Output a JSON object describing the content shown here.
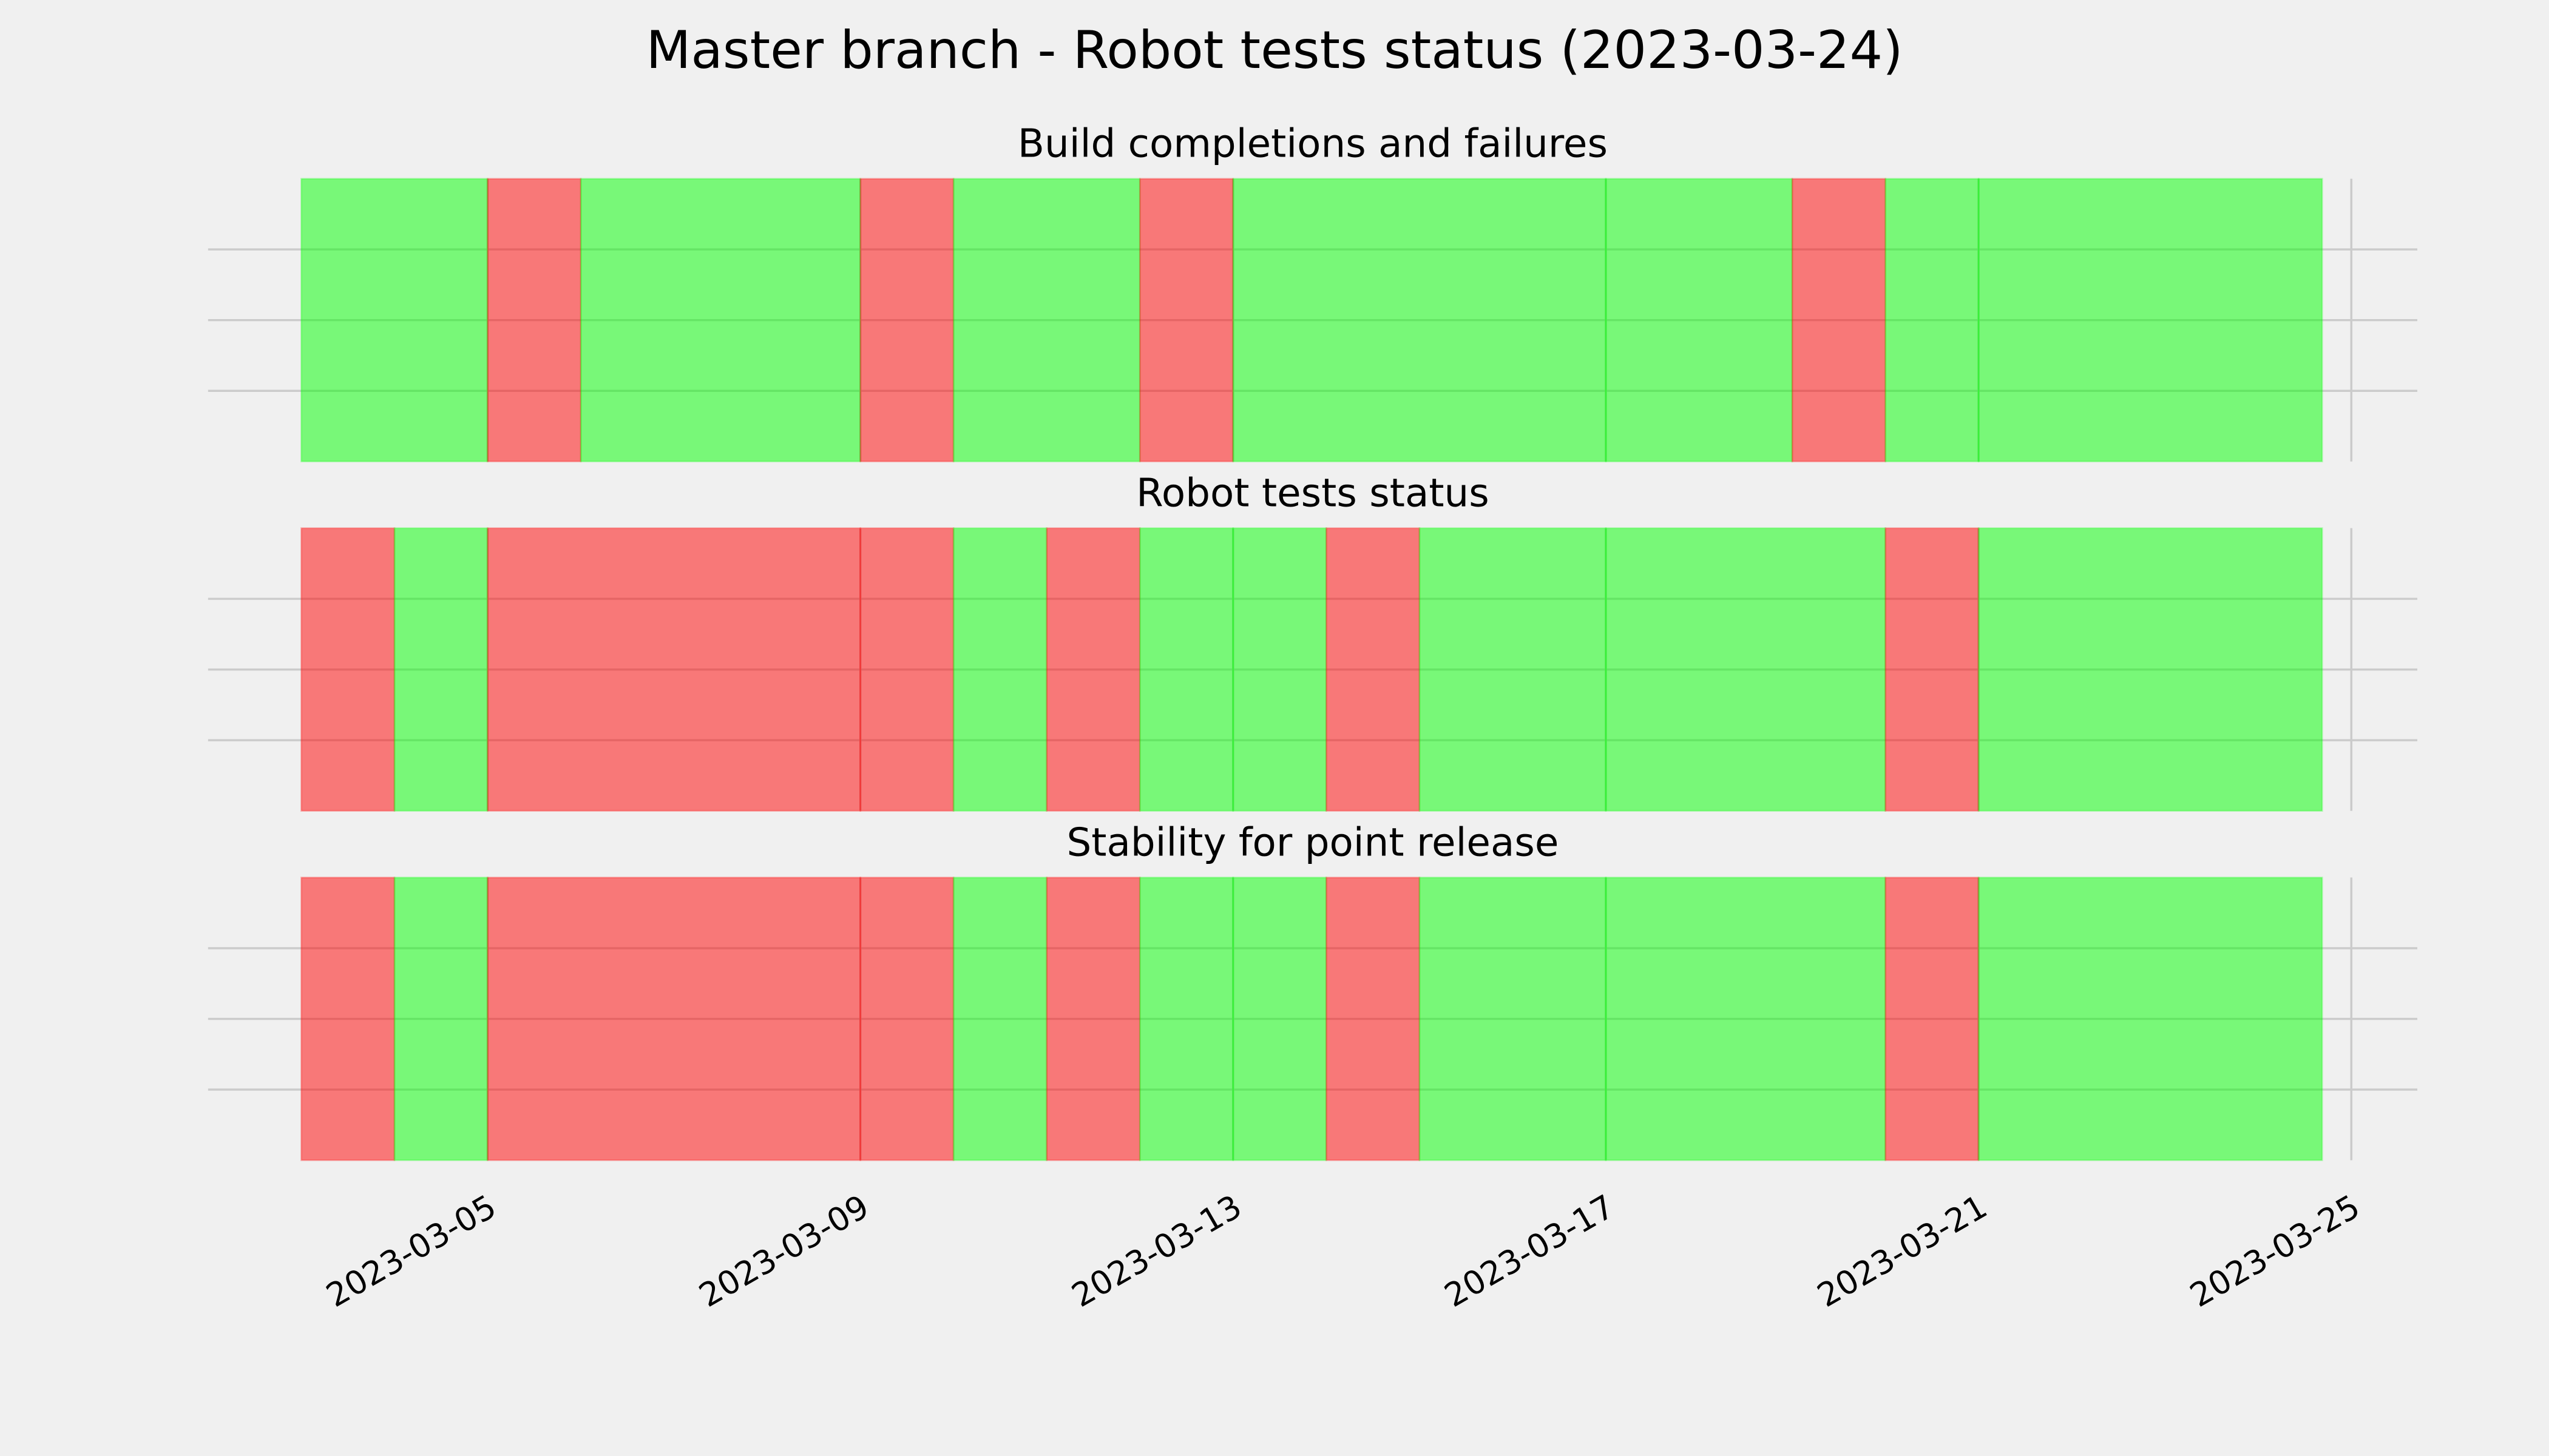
{
  "title": "Master branch - Robot tests status (2023-03-24)",
  "chart_data": [
    {
      "type": "span",
      "title": "Build completions and failures",
      "segments": [
        {
          "start": "2023-03-03",
          "end": "2023-03-05",
          "color": "#00ff00"
        },
        {
          "start": "2023-03-05",
          "end": "2023-03-06",
          "color": "#ff0000"
        },
        {
          "start": "2023-03-06",
          "end": "2023-03-09",
          "color": "#00ff00"
        },
        {
          "start": "2023-03-09",
          "end": "2023-03-10",
          "color": "#ff0000"
        },
        {
          "start": "2023-03-10",
          "end": "2023-03-12",
          "color": "#00ff00"
        },
        {
          "start": "2023-03-12",
          "end": "2023-03-13",
          "color": "#ff0000"
        },
        {
          "start": "2023-03-13",
          "end": "2023-03-17",
          "color": "#00ff00"
        },
        {
          "start": "2023-03-17",
          "end": "2023-03-19",
          "color": "#00ff00"
        },
        {
          "start": "2023-03-19",
          "end": "2023-03-20",
          "color": "#ff0000"
        },
        {
          "start": "2023-03-20",
          "end": "2023-03-21",
          "color": "#00ff00"
        },
        {
          "start": "2023-03-21",
          "end": "2023-03-24T16:30",
          "color": "#00ff00"
        }
      ],
      "xlim": [
        "2023-03-02",
        "2023-03-25T17:00"
      ],
      "xticks": [
        "2023-03-05",
        "2023-03-09",
        "2023-03-13",
        "2023-03-17",
        "2023-03-21",
        "2023-03-25"
      ],
      "xticklabels": false,
      "ylim": [
        0,
        1
      ],
      "yticks": [
        0.25,
        0.5,
        0.75
      ],
      "grid": true
    },
    {
      "type": "span",
      "title": "Robot tests status",
      "segments": [
        {
          "start": "2023-03-03",
          "end": "2023-03-04",
          "color": "#ff0000"
        },
        {
          "start": "2023-03-04",
          "end": "2023-03-05",
          "color": "#00ff00"
        },
        {
          "start": "2023-03-05",
          "end": "2023-03-09",
          "color": "#ff0000"
        },
        {
          "start": "2023-03-09",
          "end": "2023-03-10",
          "color": "#ff0000"
        },
        {
          "start": "2023-03-10",
          "end": "2023-03-11",
          "color": "#00ff00"
        },
        {
          "start": "2023-03-11",
          "end": "2023-03-12",
          "color": "#ff0000"
        },
        {
          "start": "2023-03-12",
          "end": "2023-03-13",
          "color": "#00ff00"
        },
        {
          "start": "2023-03-13",
          "end": "2023-03-14",
          "color": "#00ff00"
        },
        {
          "start": "2023-03-14",
          "end": "2023-03-15",
          "color": "#ff0000"
        },
        {
          "start": "2023-03-15",
          "end": "2023-03-17",
          "color": "#00ff00"
        },
        {
          "start": "2023-03-17",
          "end": "2023-03-20",
          "color": "#00ff00"
        },
        {
          "start": "2023-03-20",
          "end": "2023-03-21",
          "color": "#ff0000"
        },
        {
          "start": "2023-03-21",
          "end": "2023-03-24T16:30",
          "color": "#00ff00"
        }
      ],
      "xlim": [
        "2023-03-02",
        "2023-03-25T17:00"
      ],
      "xticks": [
        "2023-03-05",
        "2023-03-09",
        "2023-03-13",
        "2023-03-17",
        "2023-03-21",
        "2023-03-25"
      ],
      "xticklabels": false,
      "ylim": [
        0,
        1
      ],
      "yticks": [
        0.25,
        0.5,
        0.75
      ],
      "grid": true
    },
    {
      "type": "span",
      "title": "Stability for point release",
      "segments": [
        {
          "start": "2023-03-03",
          "end": "2023-03-04",
          "color": "#ff0000"
        },
        {
          "start": "2023-03-04",
          "end": "2023-03-05",
          "color": "#00ff00"
        },
        {
          "start": "2023-03-05",
          "end": "2023-03-09",
          "color": "#ff0000"
        },
        {
          "start": "2023-03-09",
          "end": "2023-03-10",
          "color": "#ff0000"
        },
        {
          "start": "2023-03-10",
          "end": "2023-03-11",
          "color": "#00ff00"
        },
        {
          "start": "2023-03-11",
          "end": "2023-03-12",
          "color": "#ff0000"
        },
        {
          "start": "2023-03-12",
          "end": "2023-03-13",
          "color": "#00ff00"
        },
        {
          "start": "2023-03-13",
          "end": "2023-03-14",
          "color": "#00ff00"
        },
        {
          "start": "2023-03-14",
          "end": "2023-03-15",
          "color": "#ff0000"
        },
        {
          "start": "2023-03-15",
          "end": "2023-03-17",
          "color": "#00ff00"
        },
        {
          "start": "2023-03-17",
          "end": "2023-03-20",
          "color": "#00ff00"
        },
        {
          "start": "2023-03-20",
          "end": "2023-03-21",
          "color": "#ff0000"
        },
        {
          "start": "2023-03-21",
          "end": "2023-03-24T16:30",
          "color": "#00ff00"
        }
      ],
      "xlim": [
        "2023-03-02",
        "2023-03-25T17:00"
      ],
      "xticks": [
        "2023-03-05",
        "2023-03-09",
        "2023-03-13",
        "2023-03-17",
        "2023-03-21",
        "2023-03-25"
      ],
      "xticklabels": true,
      "ylim": [
        0,
        1
      ],
      "yticks": [
        0.25,
        0.5,
        0.75
      ],
      "grid": true
    }
  ]
}
